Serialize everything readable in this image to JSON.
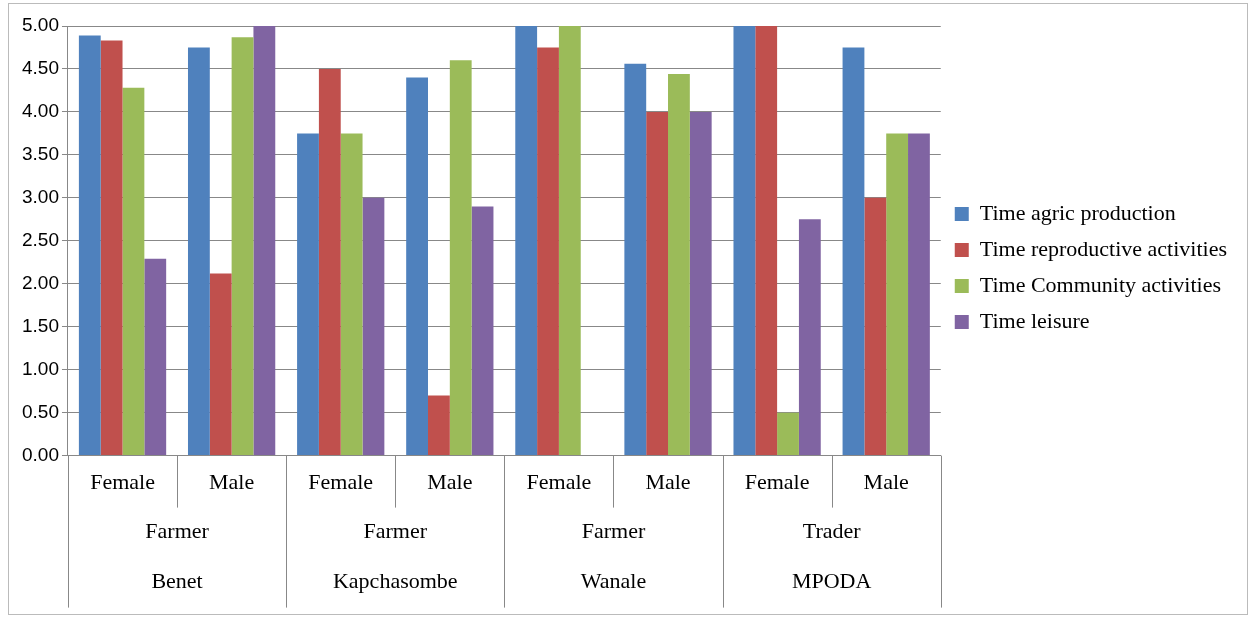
{
  "chart_data": {
    "type": "bar",
    "categories": [
      "Female",
      "Male",
      "Female",
      "Male",
      "Female",
      "Male",
      "Female",
      "Male"
    ],
    "annotations": [
      "Farmer",
      "Farmer",
      "Farmer",
      "Trader",
      "Benet",
      "Kapchasombe",
      "Wanale",
      "MPODA"
    ],
    "series": [
      {
        "name": "Time agric production",
        "color": "#4f81bd",
        "values": [
          4.89,
          4.75,
          3.75,
          4.4,
          5.0,
          4.56,
          5.0,
          4.75
        ]
      },
      {
        "name": "Time reproductive activities",
        "color": "#c0504d",
        "values": [
          4.83,
          2.12,
          4.5,
          0.7,
          4.75,
          4.0,
          5.0,
          3.0
        ]
      },
      {
        "name": "Time Community activities",
        "color": "#9bbb59",
        "values": [
          4.28,
          4.87,
          3.75,
          4.6,
          5.0,
          4.44,
          0.5,
          3.75
        ]
      },
      {
        "name": "Time leisure",
        "color": "#8064a2",
        "values": [
          2.29,
          5.0,
          3.0,
          2.9,
          0,
          4.0,
          2.75,
          3.75
        ]
      }
    ],
    "ylim": [
      0,
      5
    ],
    "yticks": [
      {
        "value": 0,
        "label": "0.00"
      },
      {
        "value": 0.5,
        "label": "0.50"
      },
      {
        "value": 1,
        "label": "1.00"
      },
      {
        "value": 1.5,
        "label": "1.50"
      },
      {
        "value": 2,
        "label": "2.00"
      },
      {
        "value": 2.5,
        "label": "2.50"
      },
      {
        "value": 3,
        "label": "3.00"
      },
      {
        "value": 3.5,
        "label": "3.50"
      },
      {
        "value": 4,
        "label": "4.00"
      },
      {
        "value": 4.5,
        "label": "4.50"
      },
      {
        "value": 5,
        "label": "5.00"
      }
    ],
    "grid": "y",
    "legend": "right"
  }
}
